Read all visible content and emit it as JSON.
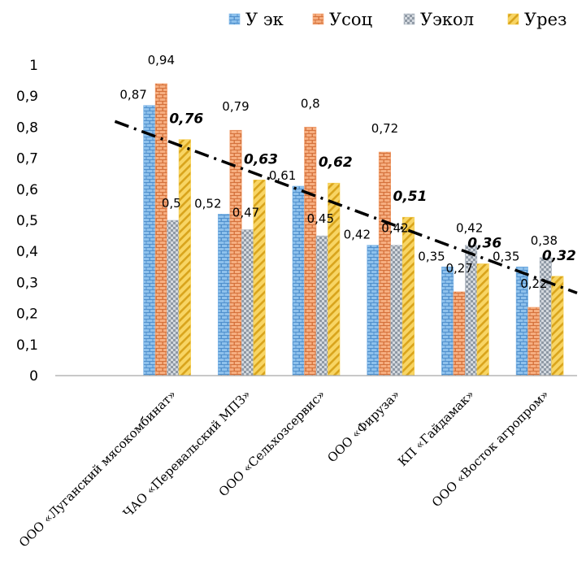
{
  "chart_data": {
    "type": "bar",
    "categories": [
      "ООО «Луганский мясокомбинат»",
      "ЧАО «Перевальский МПЗ»",
      "ООО «Сельхозсервис»",
      "ООО «Фируза»",
      "КП «Гайдамак»",
      "ООО «Восток агропром»"
    ],
    "series": [
      {
        "name": "У эк",
        "values": [
          0.87,
          0.52,
          0.61,
          0.42,
          0.35,
          0.35
        ],
        "color": "#7eb6e8",
        "pattern": "brick-blue"
      },
      {
        "name": "Усоц",
        "values": [
          0.94,
          0.79,
          0.8,
          0.72,
          0.27,
          0.22
        ],
        "color": "#f4a06e",
        "pattern": "brick-orange"
      },
      {
        "name": "Уэкол",
        "values": [
          0.5,
          0.47,
          0.45,
          0.42,
          0.42,
          0.38
        ],
        "color": "#b3bcc6",
        "pattern": "checker-gray"
      },
      {
        "name": "Урез",
        "values": [
          0.76,
          0.63,
          0.62,
          0.51,
          0.36,
          0.32
        ],
        "color": "#f5cc4a",
        "pattern": "diagonal-yellow"
      }
    ],
    "data_labels": [
      [
        "0,87",
        "0,52",
        "0,61",
        "0,42",
        "0,35",
        "0,35"
      ],
      [
        "0,94",
        "0,79",
        "0,8",
        "0,72",
        "0,27",
        "0,22"
      ],
      [
        "0,5",
        "0,47",
        "0,45",
        "0,42",
        "0,42",
        "0,38"
      ],
      [
        "0,76",
        "0,63",
        "0,62",
        "0,51",
        "0,36",
        "0,32"
      ]
    ],
    "y_tick_labels": [
      "0",
      "0,1",
      "0,2",
      "0,3",
      "0,4",
      "0,5",
      "0,6",
      "0,7",
      "0,8",
      "0,9",
      "1"
    ],
    "ylim": [
      0,
      1
    ],
    "empty_leading_category": true,
    "trendline": {
      "series": "Урез",
      "style": "dash-dot",
      "color": "#000000"
    },
    "grid": false,
    "legend_position": "top-right"
  }
}
